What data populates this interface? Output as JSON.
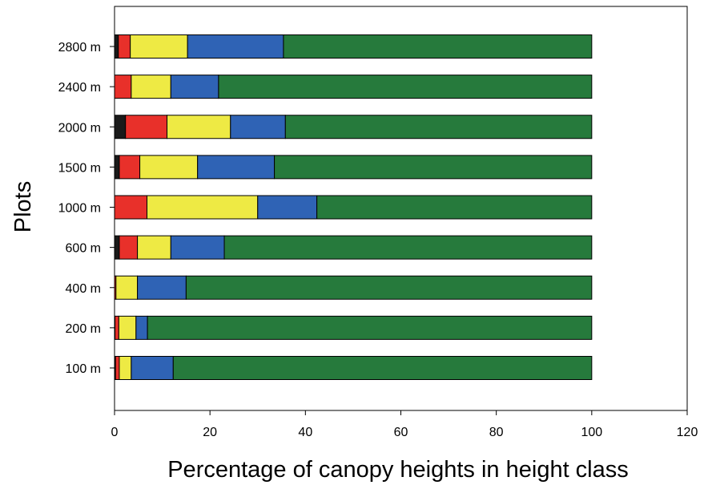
{
  "chart_data": {
    "type": "bar",
    "orientation": "horizontal",
    "stacked": true,
    "title": "",
    "xlabel": "Percentage of canopy heights in height class",
    "ylabel": "Plots",
    "xlim": [
      0,
      120
    ],
    "xticks": [
      0,
      20,
      40,
      60,
      80,
      100,
      120
    ],
    "categories": [
      "100 m",
      "200 m",
      "400 m",
      "600 m",
      "1000 m",
      "1500 m",
      "2000 m",
      "2400 m",
      "2800 m"
    ],
    "grid": false,
    "legend": "none",
    "series": [
      {
        "color": "#1a1a1a",
        "values": [
          0.2,
          0.1,
          0.0,
          1.0,
          0.0,
          1.0,
          2.3,
          0.0,
          0.8
        ]
      },
      {
        "color": "#e8302a",
        "values": [
          0.8,
          0.8,
          0.3,
          3.8,
          6.8,
          4.3,
          8.7,
          3.5,
          2.5
        ]
      },
      {
        "color": "#eeea44",
        "values": [
          2.5,
          3.6,
          4.5,
          7.0,
          23.2,
          12.1,
          13.3,
          8.3,
          12.0
        ]
      },
      {
        "color": "#2f63b5",
        "values": [
          8.8,
          2.4,
          10.2,
          11.2,
          12.4,
          16.1,
          11.5,
          10.0,
          20.1
        ]
      },
      {
        "color": "#267a3c",
        "values": [
          87.7,
          93.1,
          85.0,
          77.0,
          57.6,
          66.5,
          64.2,
          78.2,
          64.6
        ]
      }
    ]
  }
}
